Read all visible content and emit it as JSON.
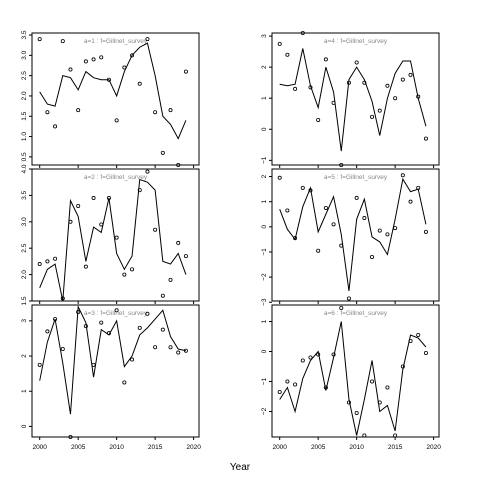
{
  "chart_data": {
    "type": "line",
    "xlabel": "Year",
    "x_ticks": [
      2000,
      2005,
      2010,
      2015,
      2020
    ],
    "xlim": [
      1999.0,
      2020.7
    ],
    "years": [
      2000,
      2001,
      2002,
      2003,
      2004,
      2005,
      2006,
      2007,
      2008,
      2009,
      2010,
      2011,
      2012,
      2013,
      2014,
      2015,
      2016,
      2017,
      2018,
      2019
    ],
    "panels": [
      {
        "title": "a=1  :  f=Gillnet_survey",
        "ylim": [
          0.3,
          3.55
        ],
        "y_ticks": [
          0.5,
          1.0,
          1.5,
          2.0,
          2.5,
          3.0,
          3.5
        ],
        "y_tick_labels": [
          "0.5",
          "1.0",
          "1.5",
          "2.0",
          "2.5",
          "3.0",
          "3.5"
        ],
        "line": [
          2.1,
          1.8,
          1.75,
          2.5,
          2.45,
          2.15,
          2.6,
          2.45,
          2.4,
          2.4,
          2.0,
          2.6,
          3.0,
          3.2,
          3.3,
          2.5,
          1.5,
          1.3,
          0.95,
          1.4
        ],
        "points": [
          3.4,
          1.6,
          1.25,
          3.35,
          2.65,
          1.65,
          2.85,
          2.9,
          2.95,
          2.4,
          1.4,
          2.7,
          3.0,
          2.3,
          3.4,
          1.6,
          0.6,
          1.65,
          0.3,
          2.6
        ]
      },
      {
        "title": "a=4  :  f=Gillnet_survey",
        "ylim": [
          -1.15,
          3.1
        ],
        "y_ticks": [
          -1,
          0,
          1,
          2,
          3
        ],
        "y_tick_labels": [
          "−1",
          "0",
          "1",
          "2",
          "3"
        ],
        "line": [
          1.45,
          1.4,
          1.45,
          2.6,
          1.4,
          0.7,
          2.0,
          1.2,
          -0.7,
          1.6,
          2.0,
          1.6,
          0.9,
          -0.2,
          1.0,
          1.8,
          2.2,
          2.2,
          1.0,
          0.1
        ],
        "points": [
          2.75,
          2.4,
          1.3,
          3.1,
          1.35,
          0.3,
          2.25,
          0.85,
          -1.15,
          1.5,
          2.15,
          1.5,
          0.4,
          0.6,
          1.4,
          1.0,
          1.6,
          1.75,
          1.05,
          -0.3
        ]
      },
      {
        "title": "a=2  :  f=Gillnet_survey",
        "ylim": [
          1.5,
          4.0
        ],
        "y_ticks": [
          1.5,
          2.0,
          2.5,
          3.0,
          3.5,
          4.0
        ],
        "y_tick_labels": [
          "1.5",
          "2.0",
          "2.5",
          "3.0",
          "3.5",
          "4.0"
        ],
        "line": [
          1.75,
          2.1,
          2.2,
          1.5,
          3.4,
          3.1,
          2.25,
          2.9,
          2.8,
          3.45,
          2.4,
          2.1,
          2.35,
          3.8,
          3.75,
          3.6,
          2.25,
          2.2,
          2.4,
          2.0
        ],
        "points": [
          2.2,
          2.25,
          2.3,
          1.55,
          3.0,
          3.3,
          2.15,
          3.45,
          2.95,
          3.45,
          2.7,
          2.0,
          2.1,
          3.6,
          3.95,
          2.85,
          1.6,
          1.9,
          2.6,
          2.35
        ]
      },
      {
        "title": "a=5  :  f=Gillnet_survey",
        "ylim": [
          -2.95,
          2.3
        ],
        "y_ticks": [
          -3,
          -2,
          -1,
          0,
          1,
          2
        ],
        "y_tick_labels": [
          "−3",
          "−2",
          "−1",
          "0",
          "1",
          "2"
        ],
        "line": [
          0.7,
          -0.1,
          -0.5,
          0.8,
          1.55,
          -0.2,
          0.5,
          1.2,
          -0.3,
          -2.55,
          0.3,
          1.1,
          -0.4,
          -0.6,
          -1.1,
          0.3,
          1.9,
          1.4,
          1.5,
          0.1
        ],
        "points": [
          1.95,
          0.65,
          -0.45,
          1.55,
          1.45,
          -0.95,
          0.75,
          0.1,
          -0.75,
          -2.85,
          1.15,
          0.35,
          -1.2,
          -0.15,
          -0.3,
          -0.05,
          2.05,
          1.0,
          1.55,
          -0.2
        ]
      },
      {
        "title": "a=3  :  f=Gillnet_survey",
        "ylim": [
          -0.3,
          3.45
        ],
        "y_ticks": [
          0,
          1,
          2,
          3
        ],
        "y_tick_labels": [
          "0",
          "1",
          "2",
          "3"
        ],
        "line": [
          1.3,
          2.4,
          3.05,
          1.8,
          0.35,
          3.4,
          2.95,
          1.4,
          2.75,
          2.6,
          3.0,
          1.7,
          2.0,
          2.6,
          2.8,
          3.05,
          3.3,
          2.55,
          2.2,
          2.15
        ],
        "points": [
          1.75,
          2.7,
          3.05,
          2.2,
          -0.3,
          3.25,
          2.85,
          1.75,
          2.95,
          2.65,
          3.3,
          1.25,
          1.9,
          2.8,
          3.2,
          2.25,
          2.75,
          2.25,
          2.1,
          2.15
        ]
      },
      {
        "title": "a=6  :  f=Gillnet_survey",
        "ylim": [
          -2.85,
          1.55
        ],
        "y_ticks": [
          -2,
          -1,
          0,
          1
        ],
        "y_tick_labels": [
          "−2",
          "−1",
          "0",
          "1"
        ],
        "line": [
          -1.6,
          -1.2,
          -2.0,
          -0.9,
          -0.3,
          0.0,
          -1.3,
          -0.2,
          1.0,
          -1.6,
          -2.8,
          -1.6,
          -0.3,
          -2.0,
          -1.8,
          -2.65,
          -0.6,
          0.55,
          0.45,
          0.15
        ],
        "points": [
          -1.35,
          -1.0,
          -1.1,
          -0.3,
          -0.2,
          -0.1,
          -1.2,
          -0.1,
          1.45,
          -1.7,
          -2.05,
          -2.8,
          -1.0,
          -1.7,
          -1.2,
          -2.8,
          -0.5,
          0.35,
          0.55,
          -0.05
        ]
      }
    ]
  }
}
